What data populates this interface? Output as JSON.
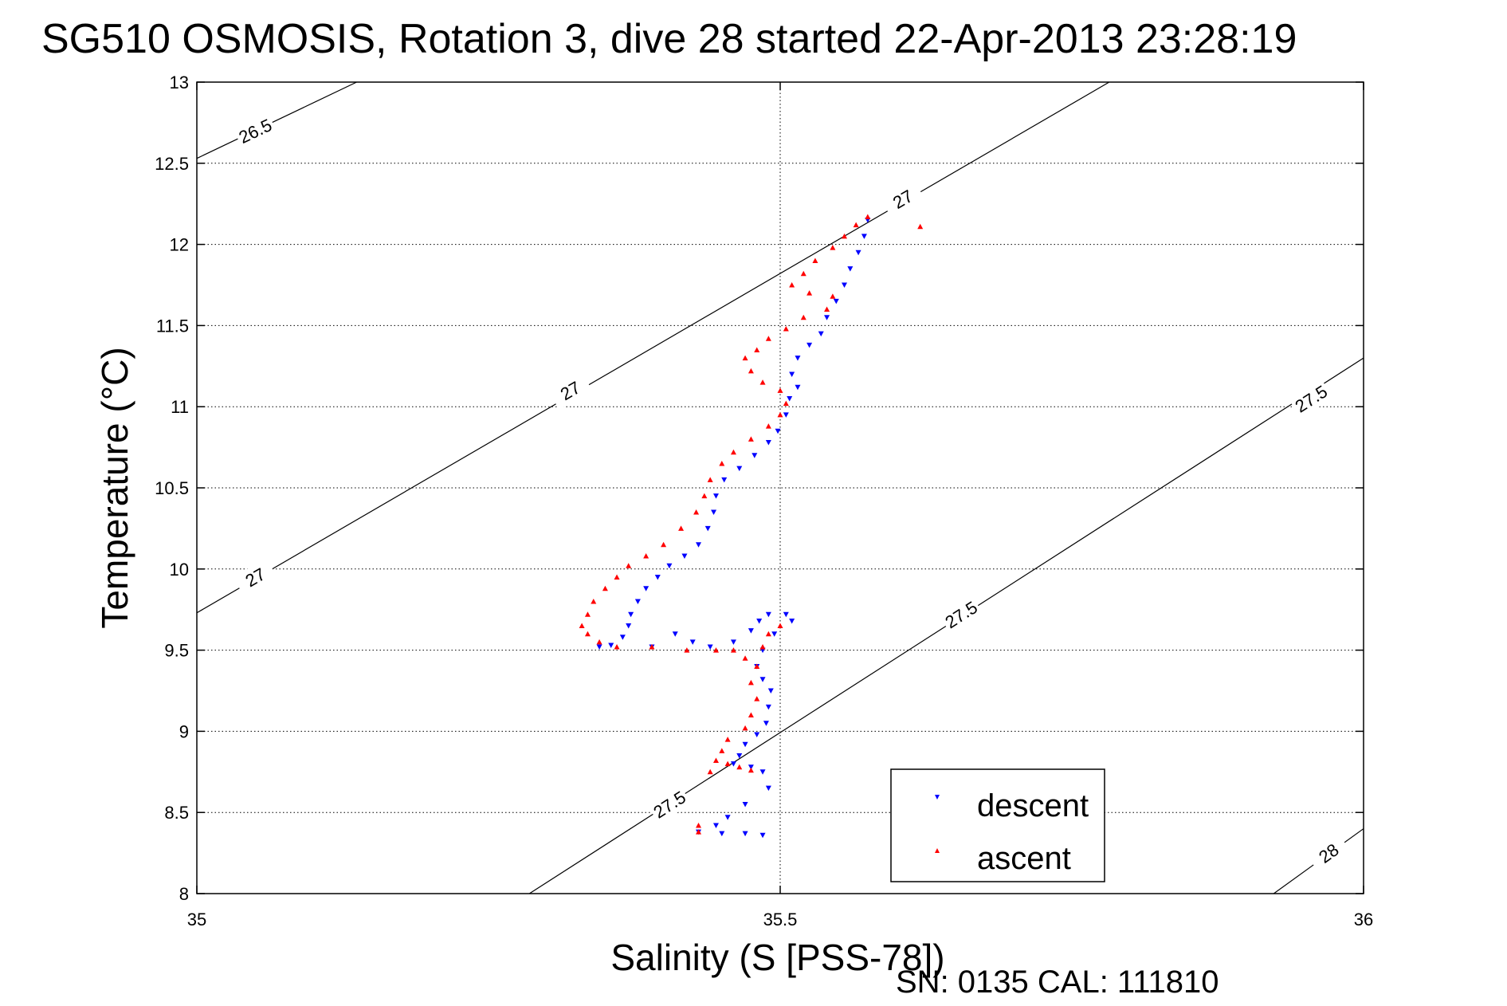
{
  "chart_data": {
    "type": "scatter",
    "title": "SG510 OSMOSIS, Rotation 3, dive 28 started 22-Apr-2013 23:28:19",
    "xlabel": "Salinity (S [PSS-78])",
    "ylabel": "Temperature (°C)",
    "xlim": [
      35,
      36
    ],
    "ylim": [
      8,
      13
    ],
    "x_ticks": [
      {
        "value": 35,
        "label": "35"
      },
      {
        "value": 35.5,
        "label": "35.5"
      },
      {
        "value": 36,
        "label": "36"
      }
    ],
    "y_ticks": [
      {
        "value": 8,
        "label": "8"
      },
      {
        "value": 8.5,
        "label": "8.5"
      },
      {
        "value": 9,
        "label": "9"
      },
      {
        "value": 9.5,
        "label": "9.5"
      },
      {
        "value": 10,
        "label": "10"
      },
      {
        "value": 10.5,
        "label": "10.5"
      },
      {
        "value": 11,
        "label": "11"
      },
      {
        "value": 11.5,
        "label": "11.5"
      },
      {
        "value": 12,
        "label": "12"
      },
      {
        "value": 12.5,
        "label": "12.5"
      },
      {
        "value": 13,
        "label": "13"
      }
    ],
    "grid": true,
    "legend_placement": "bottom-right",
    "contours": [
      {
        "label": "26.5",
        "points": [
          [
            35,
            12.53
          ],
          [
            35.137,
            13
          ]
        ],
        "label_positions": [
          [
            35.05,
            12.7
          ]
        ]
      },
      {
        "label": "27",
        "points": [
          [
            35,
            9.73
          ],
          [
            35.782,
            13
          ]
        ],
        "label_positions": [
          [
            35.05,
            9.95
          ],
          [
            35.32,
            11.1
          ],
          [
            35.605,
            12.28
          ]
        ]
      },
      {
        "label": "27.5",
        "points": [
          [
            35.285,
            8
          ],
          [
            36,
            11.3
          ]
        ],
        "label_positions": [
          [
            35.405,
            8.55
          ],
          [
            35.655,
            9.72
          ],
          [
            35.955,
            11.05
          ]
        ]
      },
      {
        "label": "28",
        "points": [
          [
            35.923,
            8
          ],
          [
            36,
            8.4
          ]
        ],
        "label_positions": [
          [
            35.97,
            8.25
          ]
        ]
      }
    ],
    "series": [
      {
        "name": "descent",
        "color": "#0000ff",
        "marker": "triangle-down",
        "points": [
          [
            35.575,
            12.15
          ],
          [
            35.572,
            12.05
          ],
          [
            35.567,
            11.95
          ],
          [
            35.56,
            11.85
          ],
          [
            35.555,
            11.75
          ],
          [
            35.548,
            11.65
          ],
          [
            35.54,
            11.55
          ],
          [
            35.535,
            11.45
          ],
          [
            35.525,
            11.38
          ],
          [
            35.515,
            11.3
          ],
          [
            35.51,
            11.2
          ],
          [
            35.515,
            11.12
          ],
          [
            35.508,
            11.05
          ],
          [
            35.505,
            10.95
          ],
          [
            35.498,
            10.85
          ],
          [
            35.49,
            10.78
          ],
          [
            35.478,
            10.7
          ],
          [
            35.465,
            10.62
          ],
          [
            35.452,
            10.55
          ],
          [
            35.445,
            10.45
          ],
          [
            35.443,
            10.35
          ],
          [
            35.438,
            10.25
          ],
          [
            35.43,
            10.15
          ],
          [
            35.418,
            10.08
          ],
          [
            35.405,
            10.02
          ],
          [
            35.395,
            9.95
          ],
          [
            35.385,
            9.88
          ],
          [
            35.378,
            9.8
          ],
          [
            35.372,
            9.72
          ],
          [
            35.37,
            9.65
          ],
          [
            35.365,
            9.58
          ],
          [
            35.355,
            9.53
          ],
          [
            35.345,
            9.52
          ],
          [
            35.39,
            9.52
          ],
          [
            35.41,
            9.6
          ],
          [
            35.425,
            9.55
          ],
          [
            35.44,
            9.52
          ],
          [
            35.46,
            9.55
          ],
          [
            35.475,
            9.62
          ],
          [
            35.482,
            9.68
          ],
          [
            35.49,
            9.72
          ],
          [
            35.505,
            9.72
          ],
          [
            35.51,
            9.68
          ],
          [
            35.495,
            9.6
          ],
          [
            35.485,
            9.5
          ],
          [
            35.48,
            9.4
          ],
          [
            35.485,
            9.32
          ],
          [
            35.492,
            9.25
          ],
          [
            35.49,
            9.15
          ],
          [
            35.488,
            9.05
          ],
          [
            35.48,
            8.98
          ],
          [
            35.47,
            8.92
          ],
          [
            35.465,
            8.85
          ],
          [
            35.46,
            8.8
          ],
          [
            35.475,
            8.78
          ],
          [
            35.485,
            8.75
          ],
          [
            35.49,
            8.65
          ],
          [
            35.47,
            8.55
          ],
          [
            35.455,
            8.47
          ],
          [
            35.445,
            8.42
          ],
          [
            35.43,
            8.38
          ],
          [
            35.45,
            8.37
          ],
          [
            35.47,
            8.37
          ],
          [
            35.485,
            8.36
          ]
        ]
      },
      {
        "name": "ascent",
        "color": "#ff0000",
        "marker": "triangle-up",
        "points": [
          [
            35.575,
            12.17
          ],
          [
            35.62,
            12.11
          ],
          [
            35.565,
            12.12
          ],
          [
            35.555,
            12.05
          ],
          [
            35.545,
            11.98
          ],
          [
            35.53,
            11.9
          ],
          [
            35.52,
            11.82
          ],
          [
            35.51,
            11.75
          ],
          [
            35.525,
            11.7
          ],
          [
            35.545,
            11.68
          ],
          [
            35.54,
            11.6
          ],
          [
            35.52,
            11.55
          ],
          [
            35.505,
            11.48
          ],
          [
            35.49,
            11.42
          ],
          [
            35.48,
            11.35
          ],
          [
            35.47,
            11.3
          ],
          [
            35.475,
            11.22
          ],
          [
            35.485,
            11.15
          ],
          [
            35.5,
            11.1
          ],
          [
            35.505,
            11.02
          ],
          [
            35.5,
            10.95
          ],
          [
            35.49,
            10.88
          ],
          [
            35.475,
            10.8
          ],
          [
            35.46,
            10.72
          ],
          [
            35.45,
            10.65
          ],
          [
            35.44,
            10.55
          ],
          [
            35.435,
            10.45
          ],
          [
            35.428,
            10.35
          ],
          [
            35.415,
            10.25
          ],
          [
            35.4,
            10.15
          ],
          [
            35.385,
            10.08
          ],
          [
            35.37,
            10.02
          ],
          [
            35.36,
            9.95
          ],
          [
            35.35,
            9.88
          ],
          [
            35.34,
            9.8
          ],
          [
            35.335,
            9.72
          ],
          [
            35.33,
            9.65
          ],
          [
            35.335,
            9.6
          ],
          [
            35.345,
            9.55
          ],
          [
            35.36,
            9.52
          ],
          [
            35.39,
            9.52
          ],
          [
            35.42,
            9.5
          ],
          [
            35.445,
            9.5
          ],
          [
            35.46,
            9.5
          ],
          [
            35.47,
            9.45
          ],
          [
            35.48,
            9.4
          ],
          [
            35.475,
            9.3
          ],
          [
            35.48,
            9.2
          ],
          [
            35.475,
            9.1
          ],
          [
            35.47,
            9.02
          ],
          [
            35.455,
            8.95
          ],
          [
            35.45,
            8.88
          ],
          [
            35.445,
            8.82
          ],
          [
            35.44,
            8.75
          ],
          [
            35.455,
            8.8
          ],
          [
            35.465,
            8.78
          ],
          [
            35.475,
            8.76
          ],
          [
            35.43,
            8.42
          ],
          [
            35.43,
            8.38
          ],
          [
            35.5,
            9.65
          ],
          [
            35.49,
            9.6
          ],
          [
            35.485,
            9.52
          ]
        ]
      }
    ]
  },
  "legend": {
    "descent_label": "descent",
    "ascent_label": "ascent"
  },
  "footer": {
    "serial_text": "SN: 0135  CAL: 111810"
  }
}
